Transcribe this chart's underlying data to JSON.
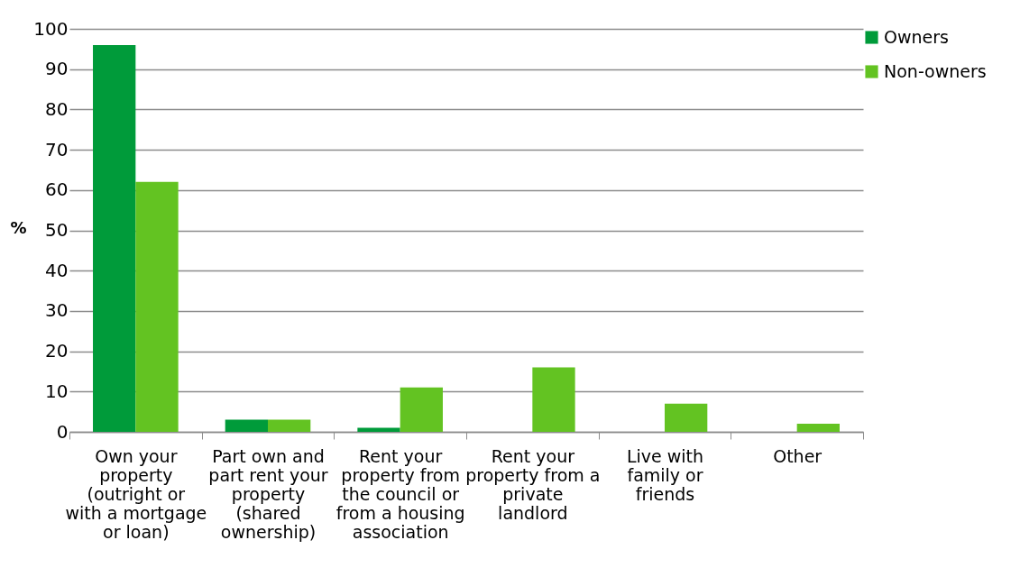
{
  "chart_data": {
    "type": "bar",
    "ylabel": "%",
    "categories": [
      "Own your property (outright or with a mortgage or loan)",
      "Part own and part rent your property (shared ownership)",
      "Rent your property from the council or from a housing association",
      "Rent your property from a private landlord",
      "Live with family or friends",
      "Other"
    ],
    "series": [
      {
        "name": "Owners",
        "color": "#009b3a",
        "values": [
          96,
          3,
          1,
          0,
          0,
          0
        ]
      },
      {
        "name": "Non-owners",
        "color": "#63c322",
        "values": [
          62,
          3,
          11,
          16,
          7,
          2
        ]
      }
    ],
    "ylim": [
      0,
      100
    ],
    "yticks": [
      0,
      10,
      20,
      30,
      40,
      50,
      60,
      70,
      80,
      90,
      100
    ],
    "grid": "y",
    "legend": "right"
  }
}
